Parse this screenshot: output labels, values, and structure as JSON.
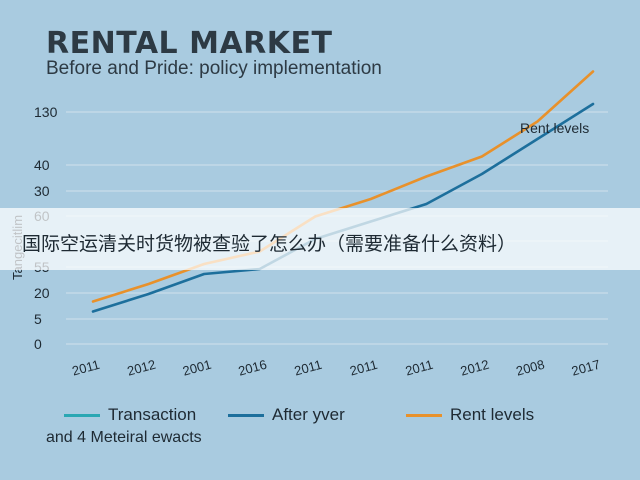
{
  "chart_data": {
    "type": "line",
    "title": "RENTAL MARKET",
    "subtitle": "Before and Pride: policy implementation",
    "ylabel": "Tangecitlim",
    "categories": [
      "2011",
      "2012",
      "2001",
      "2016",
      "2011",
      "2011",
      "2011",
      "2012",
      "2008",
      "2017"
    ],
    "y_tick_labels": [
      "0",
      "5",
      "20",
      "55",
      "",
      "60",
      "30",
      "40",
      "130"
    ],
    "series": [
      {
        "name": "Transaction",
        "color": "#2aa7b3",
        "values": [
          null,
          null,
          null,
          null,
          null,
          null,
          null,
          null,
          null,
          null
        ]
      },
      {
        "name": "After yver",
        "color": "#1d6f9c",
        "values": [
          1.3,
          2.0,
          2.8,
          3.0,
          4.2,
          4.9,
          5.6,
          6.8,
          8.2,
          9.6
        ]
      },
      {
        "name": "Rent levels",
        "color": "#e8912b",
        "values": [
          1.7,
          2.4,
          3.2,
          3.7,
          5.1,
          5.8,
          6.7,
          7.5,
          8.9,
          10.9
        ]
      }
    ],
    "annotations": [
      "Rent levels"
    ],
    "legend_position": "bottom",
    "grid": true
  },
  "overlay_text": "国际空运清关时货物被查验了怎么办（需要准备什么资料）",
  "footnote": "and 4 Meteiral ewacts"
}
